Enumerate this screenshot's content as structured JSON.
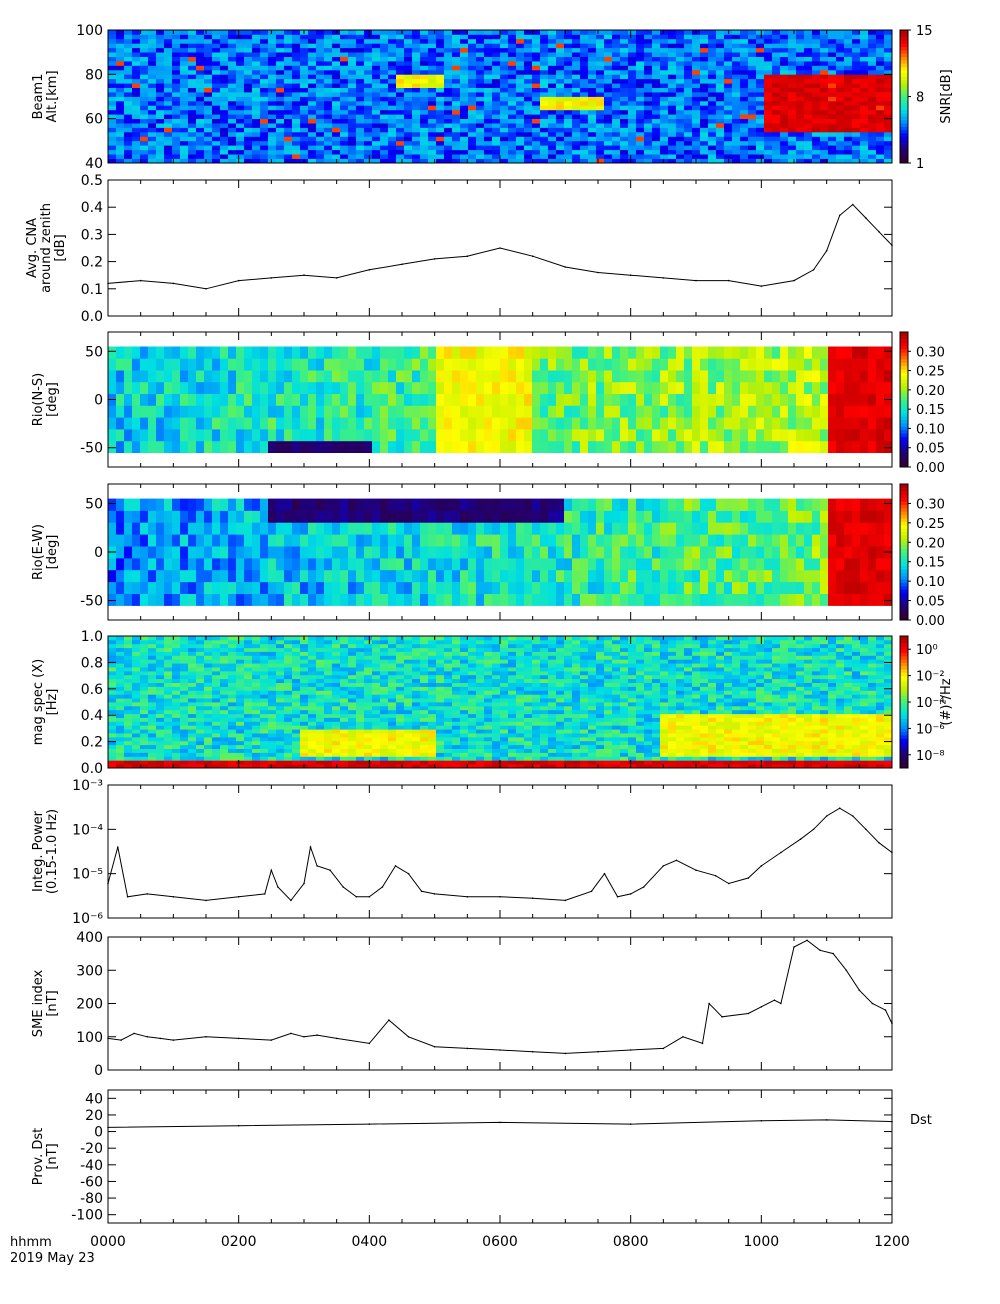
{
  "footer": {
    "time_label": "hhmm",
    "date_label": "2019 May 23",
    "x_ticks": [
      "0000",
      "0200",
      "0400",
      "0600",
      "0800",
      "1000",
      "1200"
    ]
  },
  "colors": {
    "rainbow": [
      "#300030",
      "#20007a",
      "#0000ff",
      "#0090ff",
      "#00e0e0",
      "#40f080",
      "#c0f000",
      "#ffff00",
      "#ff8000",
      "#ff0000",
      "#b00000"
    ],
    "line": "#000000"
  },
  "chart_data": [
    {
      "type": "heatmap",
      "ylabel": [
        "Beam1",
        "Alt.[km]"
      ],
      "yticks": [
        "100",
        "80",
        "60",
        "40"
      ],
      "ylim": [
        40,
        100
      ],
      "xlim": [
        0,
        1200
      ],
      "colorbar": {
        "label": "SNR[dB]",
        "ticks": [
          "15",
          "8",
          "1"
        ],
        "range": [
          1,
          15
        ]
      },
      "features": [
        {
          "x": [
            1000,
            1200
          ],
          "y": [
            55,
            80
          ],
          "level": "high"
        },
        {
          "x": [
            660,
            760
          ],
          "y": [
            65,
            70
          ],
          "level": "medium"
        },
        {
          "x": [
            440,
            520
          ],
          "y": [
            75,
            80
          ],
          "level": "medium"
        }
      ]
    },
    {
      "type": "line",
      "ylabel": [
        "Avg. CNA",
        "around zenith",
        "[dB]"
      ],
      "yticks": [
        "0.5",
        "0.4",
        "0.3",
        "0.2",
        "0.1",
        "0.0"
      ],
      "ylim": [
        0,
        0.5
      ],
      "x": [
        0,
        50,
        100,
        150,
        200,
        250,
        300,
        350,
        400,
        450,
        500,
        550,
        600,
        650,
        700,
        750,
        800,
        850,
        900,
        950,
        1000,
        1050,
        1080,
        1100,
        1120,
        1140,
        1160,
        1180,
        1200
      ],
      "values": [
        0.12,
        0.13,
        0.12,
        0.1,
        0.13,
        0.14,
        0.15,
        0.14,
        0.17,
        0.19,
        0.21,
        0.22,
        0.25,
        0.22,
        0.18,
        0.16,
        0.15,
        0.14,
        0.13,
        0.13,
        0.11,
        0.13,
        0.17,
        0.24,
        0.37,
        0.41,
        0.36,
        0.31,
        0.26
      ]
    },
    {
      "type": "heatmap",
      "ylabel": [
        "Rio(N-S)",
        "[deg]"
      ],
      "yticks": [
        "50",
        "0",
        "-50"
      ],
      "ylim": [
        -70,
        70
      ],
      "data_ylim": [
        -55,
        55
      ],
      "xlim": [
        0,
        1200
      ],
      "colorbar": {
        "label": "",
        "ticks": [
          "0.30",
          "0.25",
          "0.20",
          "0.15",
          "0.10",
          "0.05",
          "0.00"
        ],
        "range": [
          0,
          0.35
        ]
      },
      "features": [
        {
          "x": [
            1100,
            1200
          ],
          "y": [
            -55,
            55
          ],
          "level": "high"
        },
        {
          "x": [
            500,
            650
          ],
          "y": [
            -55,
            55
          ],
          "level": "medium"
        },
        {
          "x": [
            250,
            400
          ],
          "y": [
            -55,
            -40
          ],
          "level": "low"
        }
      ]
    },
    {
      "type": "heatmap",
      "ylabel": [
        "Rio(E-W)",
        "[deg]"
      ],
      "yticks": [
        "50",
        "0",
        "-50"
      ],
      "ylim": [
        -70,
        70
      ],
      "data_ylim": [
        -55,
        55
      ],
      "xlim": [
        0,
        1200
      ],
      "colorbar": {
        "label": "",
        "ticks": [
          "0.30",
          "0.25",
          "0.20",
          "0.15",
          "0.10",
          "0.05",
          "0.00"
        ],
        "range": [
          0,
          0.35
        ]
      },
      "features": [
        {
          "x": [
            1100,
            1200
          ],
          "y": [
            -55,
            55
          ],
          "level": "high"
        },
        {
          "x": [
            250,
            700
          ],
          "y": [
            30,
            55
          ],
          "level": "low"
        }
      ]
    },
    {
      "type": "heatmap",
      "ylabel": [
        "mag spec (X)",
        "[Hz]"
      ],
      "yticks": [
        "1.0",
        "0.8",
        "0.6",
        "0.4",
        "0.2",
        "0.0"
      ],
      "ylim": [
        0,
        1.0
      ],
      "xlim": [
        0,
        1200
      ],
      "colorbar": {
        "label": "(#)²/Hz",
        "ticks": [
          "10⁰",
          "10⁻²",
          "10⁻⁴",
          "10⁻⁶",
          "10⁻⁸"
        ],
        "range": [
          -9,
          1
        ]
      },
      "features": [
        {
          "x": [
            840,
            1200
          ],
          "y": [
            0.1,
            0.4
          ],
          "level": "medium"
        },
        {
          "x": [
            300,
            500
          ],
          "y": [
            0.1,
            0.3
          ],
          "level": "medium"
        },
        {
          "x": [
            0,
            1200
          ],
          "y": [
            0,
            0.05
          ],
          "level": "high"
        }
      ]
    },
    {
      "type": "line",
      "ylabel": [
        "Integ. Power",
        "(0.15-1.0 Hz)"
      ],
      "yticks": [
        "10⁻³",
        "10⁻⁴",
        "10⁻⁵",
        "10⁻⁶"
      ],
      "ylim": [
        1e-06,
        0.001
      ],
      "log": true,
      "x": [
        0,
        15,
        30,
        60,
        100,
        150,
        200,
        240,
        250,
        260,
        280,
        300,
        310,
        320,
        340,
        360,
        380,
        400,
        420,
        440,
        460,
        480,
        500,
        550,
        600,
        650,
        700,
        740,
        760,
        780,
        800,
        820,
        850,
        870,
        900,
        930,
        950,
        980,
        1000,
        1030,
        1060,
        1080,
        1100,
        1120,
        1140,
        1160,
        1180,
        1200
      ],
      "values": [
        6e-06,
        4e-05,
        3e-06,
        3.5e-06,
        3e-06,
        2.5e-06,
        3e-06,
        3.5e-06,
        1.2e-05,
        5e-06,
        2.5e-06,
        6e-06,
        4e-05,
        1.5e-05,
        1.2e-05,
        5e-06,
        3e-06,
        3e-06,
        5e-06,
        1.5e-05,
        1e-05,
        4e-06,
        3.5e-06,
        3e-06,
        3e-06,
        2.8e-06,
        2.5e-06,
        4e-06,
        1e-05,
        3e-06,
        3.5e-06,
        5e-06,
        1.5e-05,
        2e-05,
        1.2e-05,
        9e-06,
        6e-06,
        8e-06,
        1.5e-05,
        3e-05,
        6e-05,
        0.0001,
        0.0002,
        0.0003,
        0.0002,
        0.0001,
        5e-05,
        3e-05
      ]
    },
    {
      "type": "line",
      "ylabel": [
        "SME index",
        "[nT]"
      ],
      "yticks": [
        "400",
        "300",
        "200",
        "100",
        "0"
      ],
      "ylim": [
        0,
        400
      ],
      "x": [
        0,
        20,
        40,
        60,
        80,
        100,
        150,
        200,
        250,
        280,
        300,
        320,
        350,
        400,
        430,
        460,
        500,
        550,
        600,
        650,
        700,
        750,
        800,
        850,
        880,
        910,
        920,
        940,
        980,
        1000,
        1020,
        1030,
        1050,
        1070,
        1090,
        1110,
        1130,
        1150,
        1170,
        1190,
        1200
      ],
      "values": [
        95,
        90,
        110,
        100,
        95,
        90,
        100,
        95,
        90,
        110,
        100,
        105,
        95,
        80,
        150,
        100,
        70,
        65,
        60,
        55,
        50,
        55,
        60,
        65,
        100,
        80,
        200,
        160,
        170,
        190,
        210,
        200,
        370,
        390,
        360,
        350,
        300,
        240,
        200,
        180,
        140
      ]
    },
    {
      "type": "line",
      "ylabel": [
        "Prov. Dst",
        "[nT]"
      ],
      "yticks": [
        "40",
        "20",
        "0",
        "-20",
        "-40",
        "-60",
        "-80",
        "-100"
      ],
      "ylim": [
        -110,
        50
      ],
      "series_label": "Dst",
      "x": [
        0,
        200,
        400,
        600,
        800,
        1000,
        1100,
        1200
      ],
      "values": [
        5,
        7,
        9,
        11,
        9,
        13,
        14,
        12
      ]
    }
  ]
}
